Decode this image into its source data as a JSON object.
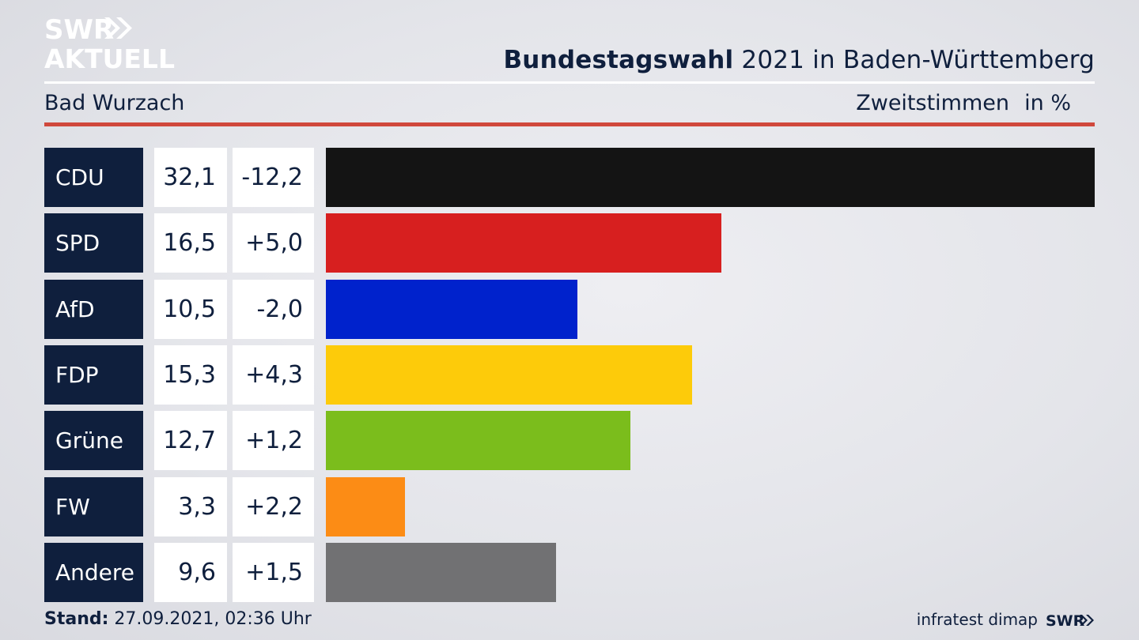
{
  "brand": {
    "logo_line1": "SWR",
    "logo_line2": "AKTUELL",
    "footer_logo": "SWR"
  },
  "header": {
    "title_bold": "Bundestagswahl",
    "title_rest": " 2021 in Baden-Württemberg",
    "location": "Bad Wurzach",
    "metric": "Zweitstimmen",
    "unit": "in %"
  },
  "chart_data": {
    "type": "bar",
    "orientation": "horizontal",
    "categories": [
      "CDU",
      "SPD",
      "AfD",
      "FDP",
      "Grüne",
      "FW",
      "Andere"
    ],
    "values": [
      32.1,
      16.5,
      10.5,
      15.3,
      12.7,
      3.3,
      9.6
    ],
    "value_labels": [
      "32,1",
      "16,5",
      "10,5",
      "15,3",
      "12,7",
      "3,3",
      "9,6"
    ],
    "changes": [
      -12.2,
      5.0,
      -2.0,
      4.3,
      1.2,
      2.2,
      1.5
    ],
    "change_labels": [
      "-12,2",
      "+5,0",
      "-2,0",
      "+4,3",
      "+1,2",
      "+2,2",
      "+1,5"
    ],
    "colors": [
      "#141414",
      "#d71f1f",
      "#0022cc",
      "#fdcb0a",
      "#7bbd1c",
      "#fc8c15",
      "#717173"
    ],
    "xlim": [
      0,
      32.1
    ],
    "grid": false
  },
  "footer": {
    "stand_label": "Stand:",
    "stand_value": " 27.09.2021, 02:36 Uhr",
    "source": "infratest dimap"
  }
}
